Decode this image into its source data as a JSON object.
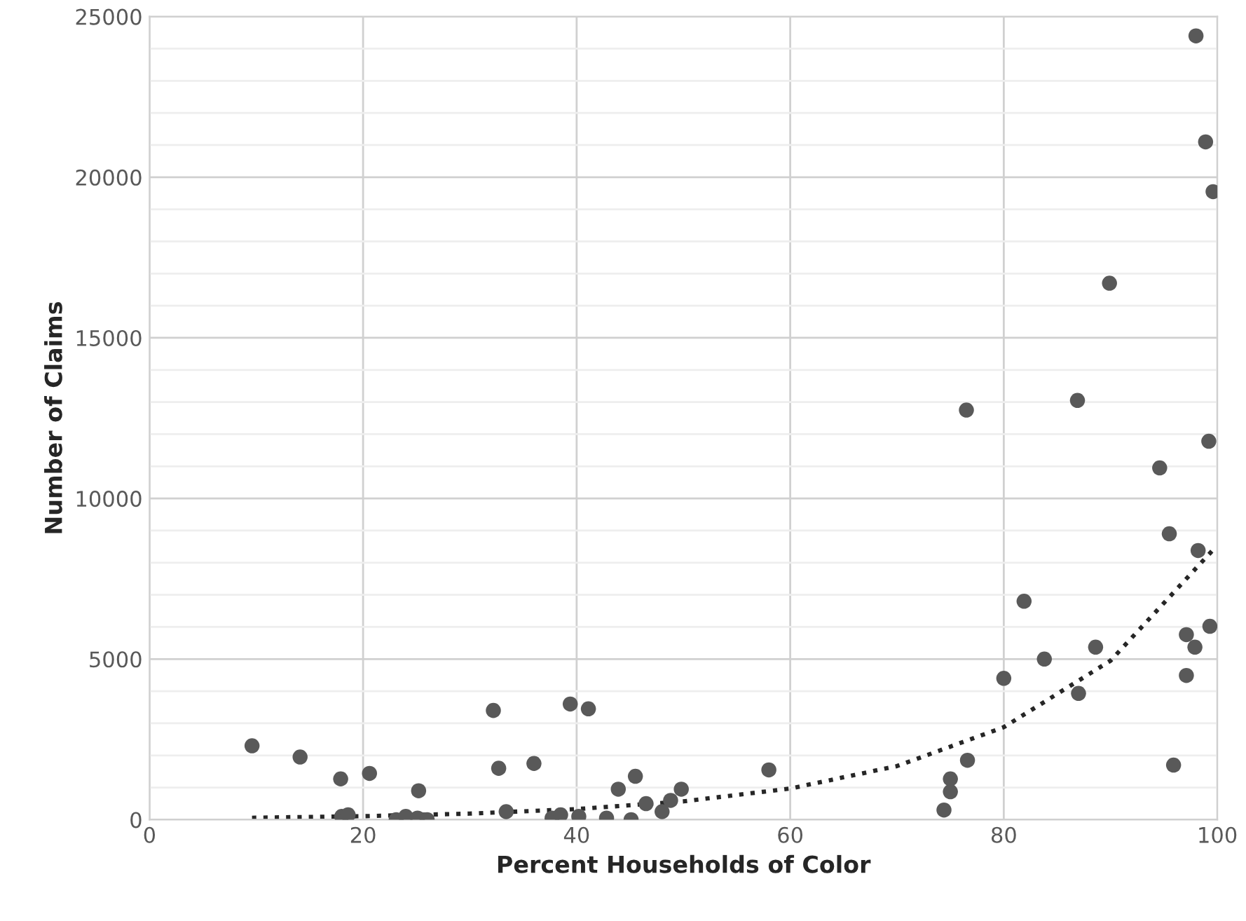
{
  "chart_data": {
    "type": "scatter",
    "xlabel": "Percent Households of Color",
    "ylabel": "Number of Claims",
    "xlim": [
      0,
      100
    ],
    "xticks": [
      0,
      20,
      40,
      60,
      80,
      100
    ],
    "ylim": [
      0,
      25000
    ],
    "yticks": [
      0,
      {
        "value": 1000,
        "label": null
      },
      {
        "value": 2000,
        "label": null
      },
      {
        "value": 3000,
        "label": null
      },
      {
        "value": 4000,
        "label": null
      },
      5000,
      {
        "value": 6000,
        "label": null
      },
      {
        "value": 7000,
        "label": null
      },
      {
        "value": 8000,
        "label": null
      },
      {
        "value": 9000,
        "label": null
      },
      10000,
      {
        "value": 11000,
        "label": null
      },
      {
        "value": 12000,
        "label": null
      },
      {
        "value": 13000,
        "label": null
      },
      {
        "value": 14000,
        "label": null
      },
      15000,
      {
        "value": 16000,
        "label": null
      },
      {
        "value": 17000,
        "label": null
      },
      {
        "value": 18000,
        "label": null
      },
      {
        "value": 19000,
        "label": null
      },
      20000,
      {
        "value": 21000,
        "label": null
      },
      {
        "value": 22000,
        "label": null
      },
      {
        "value": 23000,
        "label": null
      },
      {
        "value": 24000,
        "label": null
      },
      25000
    ],
    "grid": true,
    "marker": "circle",
    "series": [
      {
        "color": "#595959",
        "x": [
          9.6,
          14.1,
          17.9,
          20.6,
          18.0,
          18.6,
          23.1,
          24.0,
          25.2,
          25.1,
          26.0,
          32.2,
          32.7,
          33.4,
          36.0,
          37.7,
          38.5,
          39.4,
          40.2,
          41.1,
          42.8,
          43.9,
          45.1,
          45.5,
          46.5,
          48.0,
          48.8,
          49.8,
          58.0,
          74.4,
          75.0,
          75.0,
          76.6,
          76.5,
          80.0,
          81.9,
          83.8,
          86.9,
          87.0,
          88.6,
          89.9,
          94.6,
          95.5,
          95.9,
          97.1,
          97.1,
          97.9,
          98.0,
          98.2,
          98.9,
          99.2,
          99.3,
          99.6
        ],
        "values": [
          2300,
          1950,
          1270,
          1440,
          100,
          150,
          0,
          100,
          900,
          50,
          0,
          3400,
          1600,
          250,
          1750,
          50,
          150,
          3600,
          100,
          3450,
          50,
          950,
          0,
          1350,
          500,
          250,
          600,
          950,
          1550,
          300,
          870,
          1270,
          1850,
          12750,
          4400,
          6800,
          5000,
          13050,
          3930,
          5370,
          16700,
          10950,
          8900,
          1700,
          5760,
          4490,
          5370,
          24400,
          8380,
          21100,
          11780,
          6020,
          19550
        ]
      },
      {
        "type": "line",
        "color": "#262626",
        "line_style": "dotted",
        "marker": "none",
        "x": [
          9.6,
          20,
          30,
          40,
          50,
          60,
          70,
          80,
          90,
          99.6
        ],
        "values": [
          60,
          110,
          190,
          330,
          570,
          970,
          1670,
          2880,
          4950,
          8400
        ]
      }
    ]
  }
}
